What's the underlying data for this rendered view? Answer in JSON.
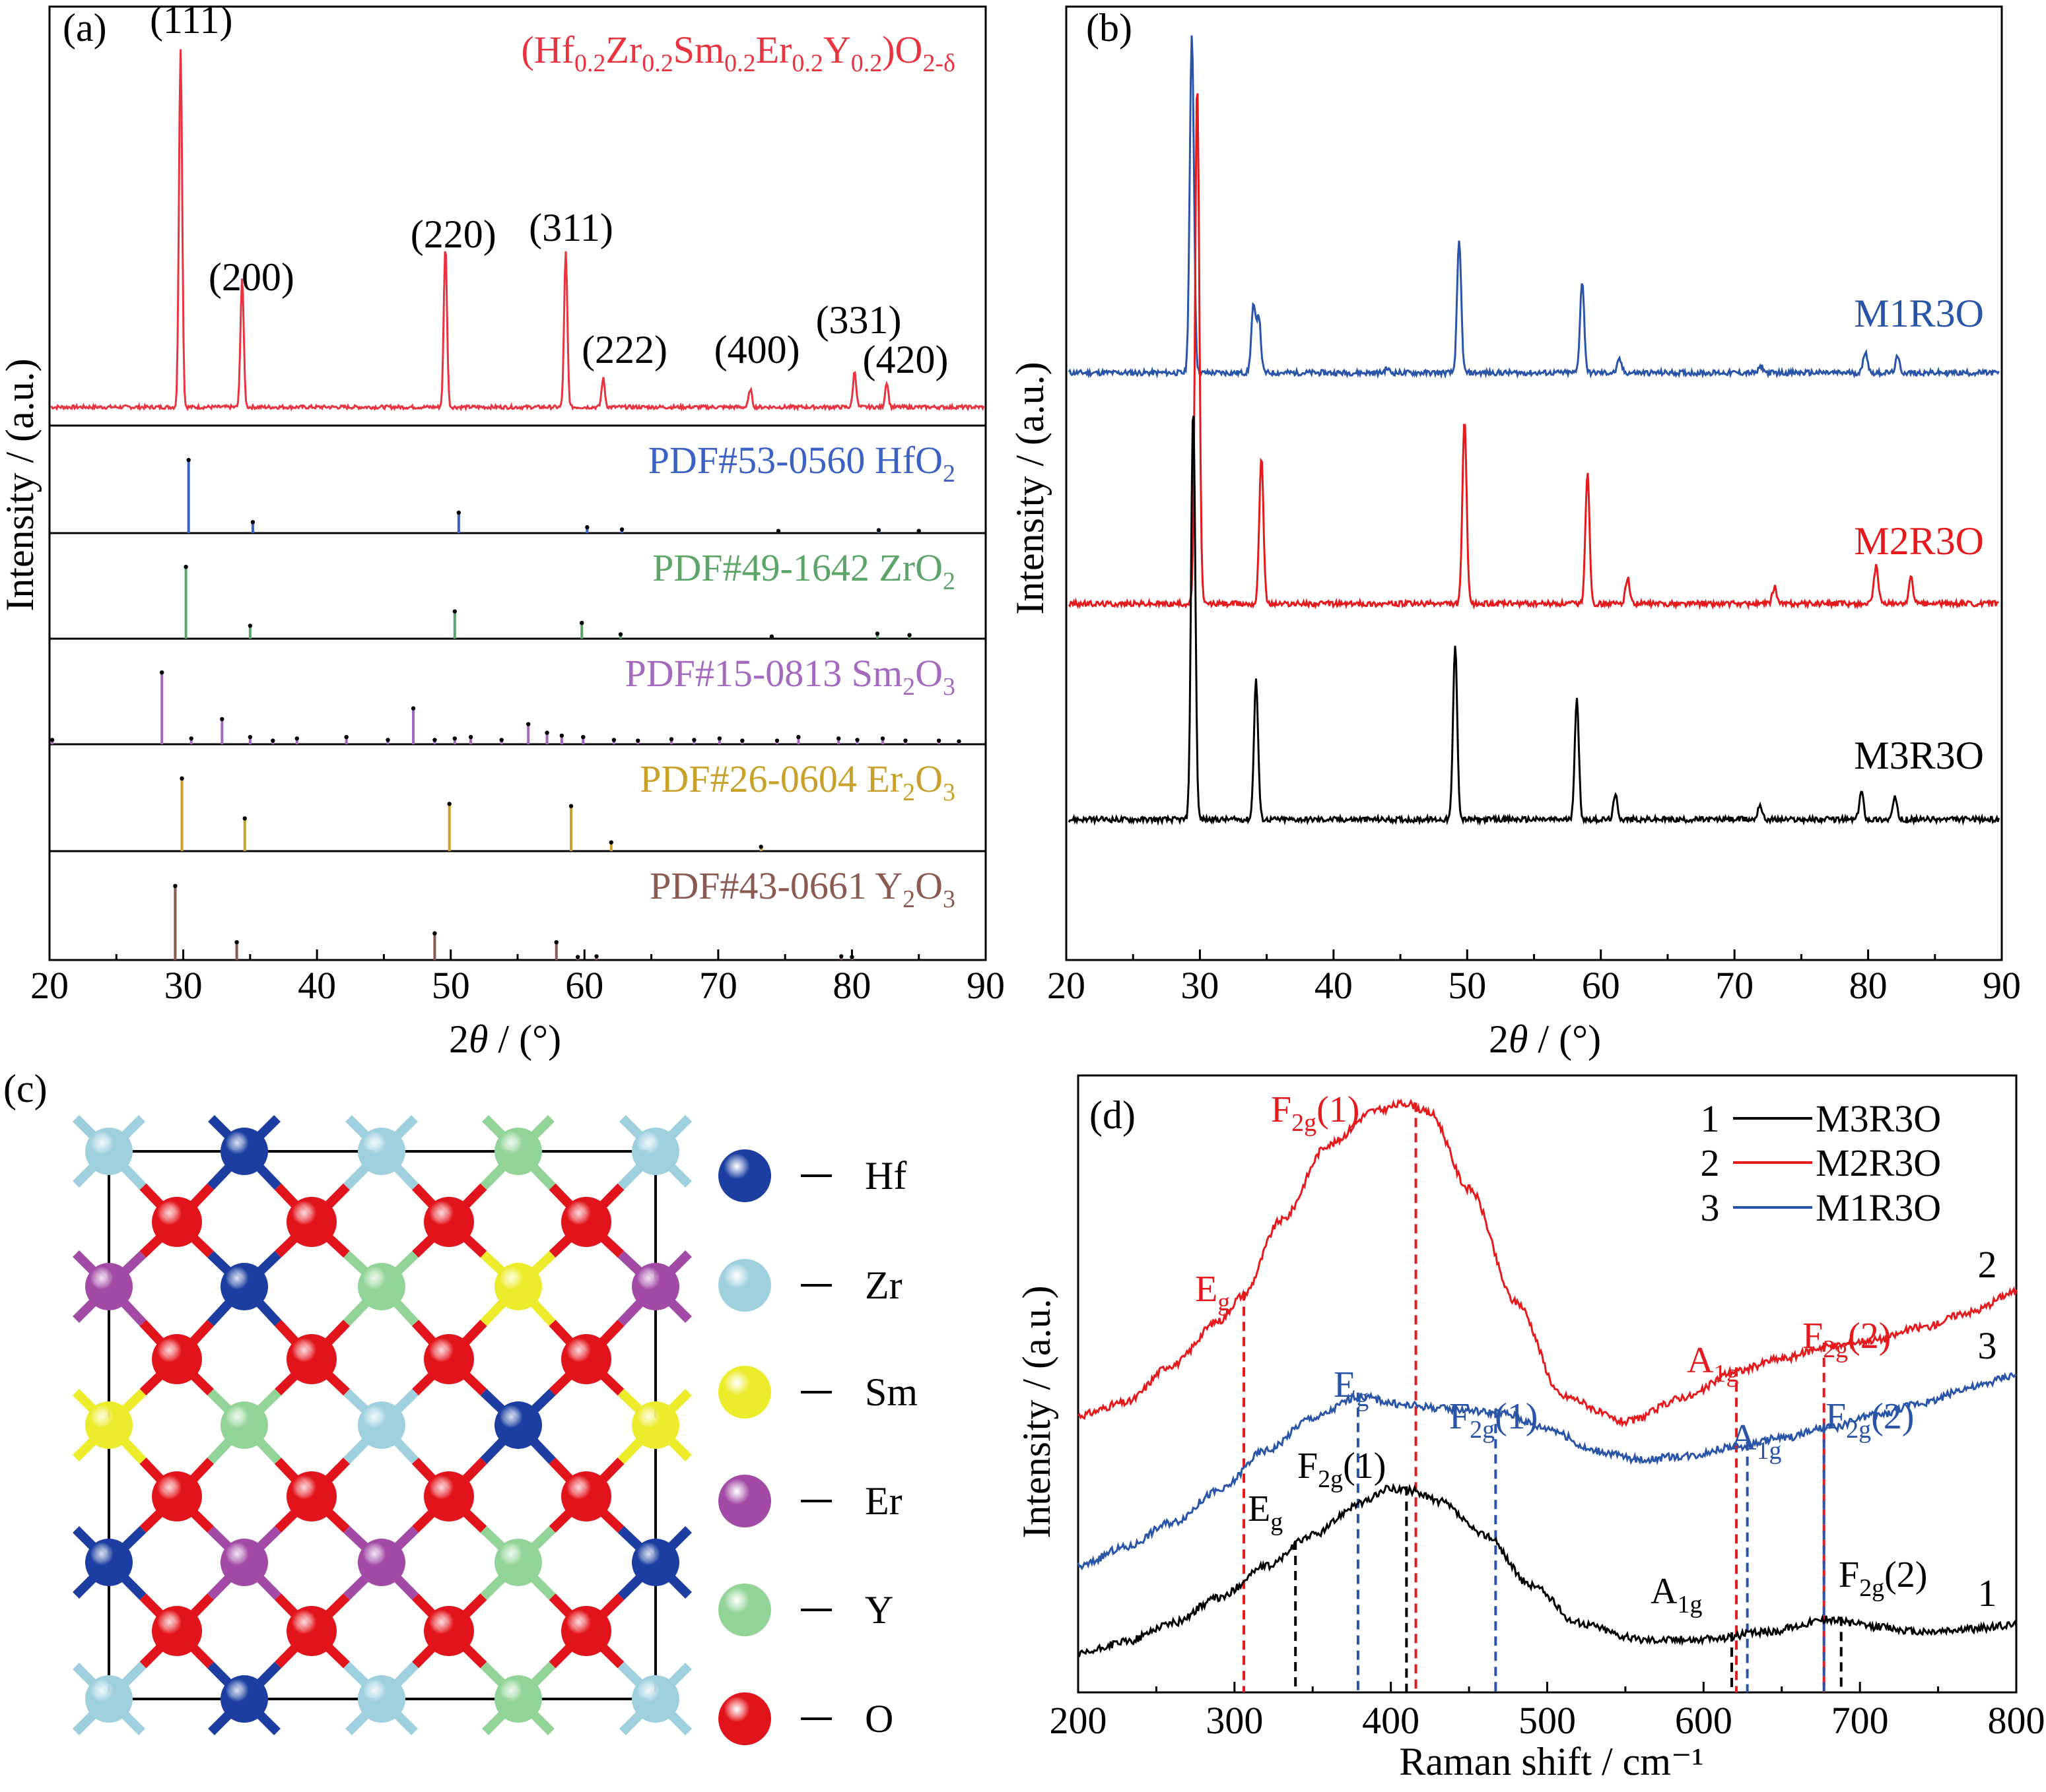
{
  "panels": {
    "a": {
      "label": "(a)",
      "chart_data": {
        "type": "line",
        "xlabel": "2θ / (°)",
        "ylabel": "Intensity / (a.u.)",
        "xlim": [
          20,
          90
        ],
        "xticks": [
          20,
          30,
          40,
          50,
          60,
          70,
          80,
          90
        ],
        "sample_label": "(Hf0.2Zr0.2Sm0.2Er0.2Y0.2)O2-δ",
        "sample_color": "#e8343f",
        "peaks": [
          {
            "x": 29.8,
            "h": 1.0,
            "hkl": "(111)"
          },
          {
            "x": 34.4,
            "h": 0.36,
            "hkl": "(200)"
          },
          {
            "x": 49.6,
            "h": 0.45,
            "hkl": "(220)"
          },
          {
            "x": 58.6,
            "h": 0.43,
            "hkl": "(311)"
          },
          {
            "x": 61.4,
            "h": 0.08,
            "hkl": "(222)"
          },
          {
            "x": 72.4,
            "h": 0.05,
            "hkl": "(400)"
          },
          {
            "x": 80.2,
            "h": 0.1,
            "hkl": "(331)"
          },
          {
            "x": 82.6,
            "h": 0.07,
            "hkl": "(420)"
          }
        ],
        "references": [
          {
            "label": "PDF#53-0560 HfO2",
            "color": "#3a62c4",
            "lines": [
              [
                30.4,
                1.0
              ],
              [
                35.2,
                0.15
              ],
              [
                50.6,
                0.28
              ],
              [
                60.2,
                0.08
              ],
              [
                62.8,
                0.05
              ],
              [
                74.5,
                0.03
              ],
              [
                82.0,
                0.04
              ],
              [
                85.0,
                0.03
              ]
            ]
          },
          {
            "label": "PDF#49-1642 ZrO2",
            "color": "#5aa567",
            "lines": [
              [
                30.2,
                1.0
              ],
              [
                35.0,
                0.18
              ],
              [
                50.3,
                0.38
              ],
              [
                59.8,
                0.22
              ],
              [
                62.7,
                0.06
              ],
              [
                74.0,
                0.03
              ],
              [
                81.9,
                0.07
              ],
              [
                84.3,
                0.05
              ]
            ]
          },
          {
            "label": "PDF#15-0813 Sm2O3",
            "color": "#a56ac0",
            "lines": [
              [
                20.2,
                0.06
              ],
              [
                28.4,
                1.0
              ],
              [
                30.6,
                0.08
              ],
              [
                32.9,
                0.35
              ],
              [
                35.0,
                0.1
              ],
              [
                36.7,
                0.05
              ],
              [
                38.5,
                0.08
              ],
              [
                42.2,
                0.1
              ],
              [
                45.3,
                0.06
              ],
              [
                47.2,
                0.5
              ],
              [
                48.8,
                0.06
              ],
              [
                50.3,
                0.08
              ],
              [
                51.5,
                0.1
              ],
              [
                53.8,
                0.06
              ],
              [
                55.8,
                0.28
              ],
              [
                57.2,
                0.16
              ],
              [
                58.3,
                0.12
              ],
              [
                59.9,
                0.1
              ],
              [
                62.2,
                0.06
              ],
              [
                64.0,
                0.05
              ],
              [
                66.5,
                0.07
              ],
              [
                68.2,
                0.06
              ],
              [
                70.1,
                0.08
              ],
              [
                71.8,
                0.05
              ],
              [
                74.4,
                0.05
              ],
              [
                76.0,
                0.1
              ],
              [
                79.0,
                0.08
              ],
              [
                80.4,
                0.06
              ],
              [
                82.3,
                0.08
              ],
              [
                84.0,
                0.05
              ],
              [
                86.5,
                0.05
              ],
              [
                88.0,
                0.04
              ]
            ]
          },
          {
            "label": "PDF#26-0604 Er2O3",
            "color": "#c9a02a",
            "lines": [
              [
                29.9,
                1.0
              ],
              [
                34.6,
                0.45
              ],
              [
                49.9,
                0.65
              ],
              [
                59.0,
                0.62
              ],
              [
                62.0,
                0.12
              ],
              [
                73.2,
                0.06
              ]
            ]
          },
          {
            "label": "PDF#43-0661 Y2O3",
            "color": "#8b5a50",
            "lines": [
              [
                29.4,
                1.0
              ],
              [
                34.0,
                0.24
              ],
              [
                48.8,
                0.36
              ],
              [
                57.9,
                0.24
              ],
              [
                59.5,
                0.04
              ],
              [
                60.9,
                0.05
              ],
              [
                79.2,
                0.05
              ],
              [
                80.0,
                0.04
              ]
            ]
          }
        ]
      }
    },
    "b": {
      "label": "(b)",
      "chart_data": {
        "type": "line",
        "xlabel": "2θ / (°)",
        "ylabel": "Intensity / (a.u.)",
        "xlim": [
          20,
          90
        ],
        "xticks": [
          20,
          30,
          40,
          50,
          60,
          70,
          80,
          90
        ],
        "series": [
          {
            "name": "M1R3O",
            "color": "#2855a8",
            "offset": 2.0,
            "peaks": [
              [
                29.4,
                1.55
              ],
              [
                34.0,
                0.3
              ],
              [
                34.4,
                0.26
              ],
              [
                44.0,
                0.02
              ],
              [
                49.4,
                0.6
              ],
              [
                58.6,
                0.42
              ],
              [
                61.4,
                0.06
              ],
              [
                72.0,
                0.03
              ],
              [
                79.8,
                0.1
              ],
              [
                82.2,
                0.07
              ]
            ]
          },
          {
            "name": "M2R3O",
            "color": "#e41a1c",
            "offset": 1.0,
            "peaks": [
              [
                29.8,
                2.4
              ],
              [
                34.6,
                0.68
              ],
              [
                49.8,
                0.85
              ],
              [
                59.0,
                0.6
              ],
              [
                62.0,
                0.12
              ],
              [
                73.0,
                0.08
              ],
              [
                80.6,
                0.18
              ],
              [
                83.2,
                0.12
              ]
            ]
          },
          {
            "name": "M3R3O",
            "color": "#000000",
            "offset": 0.0,
            "peaks": [
              [
                29.5,
                1.9
              ],
              [
                34.2,
                0.64
              ],
              [
                49.1,
                0.8
              ],
              [
                58.2,
                0.55
              ],
              [
                61.1,
                0.11
              ],
              [
                71.9,
                0.07
              ],
              [
                79.5,
                0.13
              ],
              [
                82.0,
                0.1
              ]
            ]
          }
        ]
      }
    },
    "c": {
      "label": "(c)",
      "legend": [
        {
          "name": "Hf",
          "color": "#1b3ea0"
        },
        {
          "name": "Zr",
          "color": "#9fd0de"
        },
        {
          "name": "Sm",
          "color": "#ecec2c"
        },
        {
          "name": "Er",
          "color": "#a24aa5"
        },
        {
          "name": "Y",
          "color": "#92d497"
        },
        {
          "name": "O",
          "color": "#e2141b"
        }
      ]
    },
    "d": {
      "label": "(d)",
      "chart_data": {
        "type": "line",
        "xlabel": "Raman shift / cm⁻¹",
        "ylabel": "Intensity / (a.u.)",
        "xlim": [
          200,
          800
        ],
        "xticks": [
          200,
          300,
          400,
          500,
          600,
          700,
          800
        ],
        "legend": [
          {
            "num": "1",
            "name": "M3R3O",
            "color": "#000000"
          },
          {
            "num": "2",
            "name": "M2R3O",
            "color": "#e41a1c"
          },
          {
            "num": "3",
            "name": "M1R3O",
            "color": "#2855a8"
          }
        ],
        "series": [
          {
            "name": "M2R3O",
            "num": "2",
            "color": "#e41a1c",
            "x": [
              200,
              230,
              260,
              290,
              305,
              330,
              360,
              390,
              410,
              425,
              450,
              480,
              510,
              550,
              590,
              620,
              650,
              680,
              710,
              740,
              770,
              800
            ],
            "y": [
              1.9,
              2.0,
              2.3,
              2.65,
              2.85,
              3.45,
              4.05,
              4.32,
              4.38,
              4.3,
              3.7,
              2.8,
              2.05,
              1.85,
              2.05,
              2.25,
              2.35,
              2.45,
              2.5,
              2.6,
              2.72,
              2.88
            ],
            "modes": [
              {
                "label": "E",
                "subscript": "g",
                "x": 306
              },
              {
                "label": "F",
                "subscript": "2g",
                "suffix": "(1)",
                "x": 416
              },
              {
                "label": "A",
                "subscript": "1g",
                "x": 621
              },
              {
                "label": "F",
                "subscript": "2g",
                "suffix": "(2)",
                "x": 677
              }
            ]
          },
          {
            "name": "M1R3O",
            "num": "3",
            "color": "#2855a8",
            "x": [
              200,
              230,
              260,
              290,
              320,
              350,
              380,
              410,
              440,
              470,
              500,
              530,
              560,
              590,
              620,
              650,
              680,
              710,
              740,
              770,
              800
            ],
            "y": [
              0.7,
              0.85,
              1.05,
              1.3,
              1.62,
              1.88,
              2.05,
              1.98,
              1.95,
              1.92,
              1.8,
              1.62,
              1.55,
              1.58,
              1.65,
              1.72,
              1.8,
              1.9,
              2.0,
              2.12,
              2.22
            ],
            "modes": [
              {
                "label": "E",
                "subscript": "g",
                "x": 379
              },
              {
                "label": "F",
                "subscript": "2g",
                "suffix": "(1)",
                "x": 467
              },
              {
                "label": "A",
                "subscript": "1g",
                "x": 628
              },
              {
                "label": "F",
                "subscript": "2g",
                "suffix": "(2)",
                "x": 677
              }
            ]
          },
          {
            "name": "M3R3O",
            "num": "1",
            "color": "#000000",
            "x": [
              200,
              230,
              260,
              290,
              320,
              350,
              380,
              400,
              415,
              430,
              460,
              490,
              520,
              560,
              600,
              640,
              680,
              710,
              740,
              770,
              800
            ],
            "y": [
              0.0,
              0.1,
              0.25,
              0.45,
              0.7,
              0.95,
              1.2,
              1.32,
              1.3,
              1.22,
              0.95,
              0.55,
              0.25,
              0.12,
              0.12,
              0.18,
              0.28,
              0.22,
              0.18,
              0.2,
              0.24
            ],
            "modes": [
              {
                "label": "E",
                "subscript": "g",
                "x": 339
              },
              {
                "label": "F",
                "subscript": "2g",
                "suffix": "(1)",
                "x": 410
              },
              {
                "label": "A",
                "subscript": "1g",
                "x": 618
              },
              {
                "label": "F",
                "subscript": "2g",
                "suffix": "(2)",
                "x": 688
              }
            ]
          }
        ]
      }
    }
  }
}
